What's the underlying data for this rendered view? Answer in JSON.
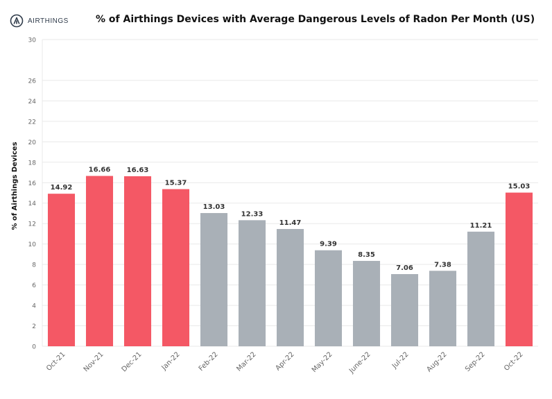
{
  "brand": {
    "name": "AIRTHINGS",
    "logo_icon": "airthings-logo-icon"
  },
  "colors": {
    "highlight": "#f45865",
    "neutral": "#a9b0b7",
    "grid": "#e9e9e9",
    "axis_text": "#666666",
    "label_text": "#333333"
  },
  "chart_data": {
    "type": "bar",
    "title": "% of Airthings Devices with Average Dangerous Levels of Radon Per Month (US)",
    "xlabel": "",
    "ylabel": "% of Airthings Devices",
    "ylim": [
      0,
      30
    ],
    "yticks": [
      0,
      2,
      4,
      6,
      8,
      10,
      12,
      14,
      16,
      18,
      20,
      22,
      24,
      26,
      30
    ],
    "grid": true,
    "categories": [
      "Oct-21",
      "Nov-21",
      "Dec-21",
      "Jan-22",
      "Feb-22",
      "Mar-22",
      "Apr-22",
      "May-22",
      "June-22",
      "Jul-22",
      "Aug-22",
      "Sep-22",
      "Oct-22"
    ],
    "values": [
      14.92,
      16.66,
      16.63,
      15.37,
      13.03,
      12.33,
      11.47,
      9.39,
      8.35,
      7.06,
      7.38,
      11.21,
      15.03
    ],
    "value_labels": [
      "14.92",
      "16.66",
      "16.63",
      "15.37",
      "13.03",
      "12.33",
      "11.47",
      "9.39",
      "8.35",
      "7.06",
      "7.38",
      "11.21",
      "15.03"
    ],
    "bar_colors": [
      "#f45865",
      "#f45865",
      "#f45865",
      "#f45865",
      "#a9b0b7",
      "#a9b0b7",
      "#a9b0b7",
      "#a9b0b7",
      "#a9b0b7",
      "#a9b0b7",
      "#a9b0b7",
      "#a9b0b7",
      "#f45865"
    ]
  }
}
